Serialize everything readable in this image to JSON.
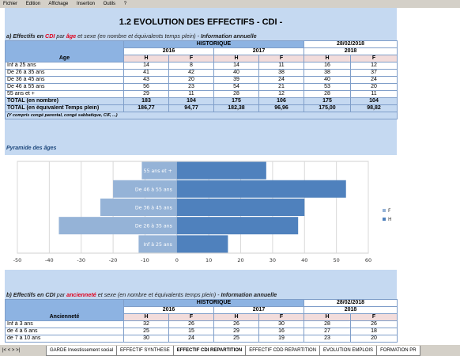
{
  "menu": [
    "Fichier",
    "Edition",
    "Affichage",
    "Insertion",
    "Outils",
    "?"
  ],
  "sheet": {
    "title": "1.2   EVOLUTION DES EFFECTIFS - CDI  -",
    "section_a": {
      "prefix": "a) Effectifs en ",
      "cdi": "CDI",
      "mid": " par ",
      "key": "âge",
      "rest": " et sexe (en nombre et équivalents temps plein) - ",
      "suffix": "Information annuelle"
    },
    "table_a": {
      "hist": "HISTORIQUE",
      "date": "28/02/2018",
      "years": [
        "2016",
        "2017",
        "2018"
      ],
      "col_label": "Age",
      "h": "H",
      "f": "F",
      "rows": [
        {
          "label": "Inf à 25 ans",
          "v": [
            "14",
            "8",
            "14",
            "11",
            "16",
            "12"
          ]
        },
        {
          "label": "De 26 à 35 ans",
          "v": [
            "41",
            "42",
            "40",
            "38",
            "38",
            "37"
          ]
        },
        {
          "label": "De 36 à 45 ans",
          "v": [
            "43",
            "20",
            "39",
            "24",
            "40",
            "24"
          ]
        },
        {
          "label": "De 46 à 55 ans",
          "v": [
            "56",
            "23",
            "54",
            "21",
            "53",
            "20"
          ]
        },
        {
          "label": "55 ans et +",
          "v": [
            "29",
            "11",
            "28",
            "12",
            "28",
            "11"
          ]
        }
      ],
      "totals": [
        {
          "label": "TOTAL (en nombre)",
          "v": [
            "183",
            "104",
            "175",
            "106",
            "175",
            "104"
          ]
        },
        {
          "label": "TOTAL (en équivalent Temps plein)",
          "v": [
            "186,77",
            "94,77",
            "182,38",
            "96,96",
            "175,00",
            "98,82"
          ]
        }
      ],
      "note": "(Y compris congé parental, congé sabbatique, CIF, ...)"
    },
    "pyramid_title": "Pyramide des âges",
    "section_b": {
      "prefix": "b) Effectifs en CDI ",
      "mid": "par ",
      "key": "ancienneté",
      "rest": " et sexe (en nombre et équivalents temps plein) - ",
      "suffix": "Information annuelle"
    },
    "table_b": {
      "hist": "HISTORIQUE",
      "date": "28/02/2018",
      "years": [
        "2016",
        "2017",
        "2018"
      ],
      "col_label": "Ancienneté",
      "h": "H",
      "f": "F",
      "rows": [
        {
          "label": "Inf à 3 ans",
          "v": [
            "32",
            "26",
            "26",
            "30",
            "28",
            "26"
          ]
        },
        {
          "label": "de 4 à 6 ans",
          "v": [
            "25",
            "15",
            "29",
            "16",
            "27",
            "18"
          ]
        },
        {
          "label": "de 7 à 10 ans",
          "v": [
            "30",
            "24",
            "25",
            "19",
            "23",
            "20"
          ]
        }
      ]
    }
  },
  "tabs": {
    "nav": "|< < > >|",
    "items": [
      "GARDE Investissement social",
      "EFFECTIF SYNTHESE",
      "EFFECTIF CDI REPARTITION",
      "EFFECTIF CDD REPARTITION",
      "EVOLUTION EMPLOIS",
      "FORMATION PR"
    ],
    "active_index": 2
  },
  "chart_data": {
    "type": "bar",
    "orientation": "horizontal",
    "title": "Pyramide des âges",
    "categories": [
      "Inf à 25 ans",
      "De 26 à 35 ans",
      "De 36 à 45 ans",
      "De 46 à 55 ans",
      "55 ans et +"
    ],
    "series": [
      {
        "name": "F",
        "values": [
          -12,
          -37,
          -24,
          -20,
          -11
        ],
        "color": "#95b3d7"
      },
      {
        "name": "H",
        "values": [
          16,
          38,
          40,
          53,
          28
        ],
        "color": "#4f81bd"
      }
    ],
    "xlim": [
      -50,
      60
    ],
    "xticks": [
      "-50",
      "-40",
      "-30",
      "-20",
      "-10",
      "0",
      "10",
      "20",
      "30",
      "40",
      "50",
      "60"
    ],
    "legend": "right",
    "grid": true
  }
}
